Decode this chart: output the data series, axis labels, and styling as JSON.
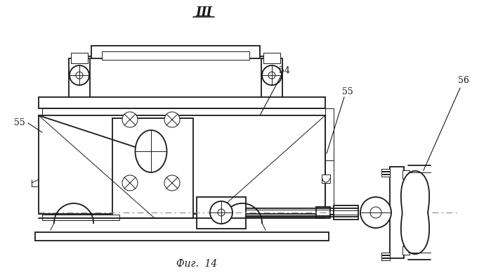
{
  "title": "Ш",
  "fig_label": "Фиг.  14",
  "bg_color": "#ffffff",
  "line_color": "#1a1a1a",
  "lw_main": 1.3,
  "lw_thin": 0.7,
  "lw_thick": 2.0
}
